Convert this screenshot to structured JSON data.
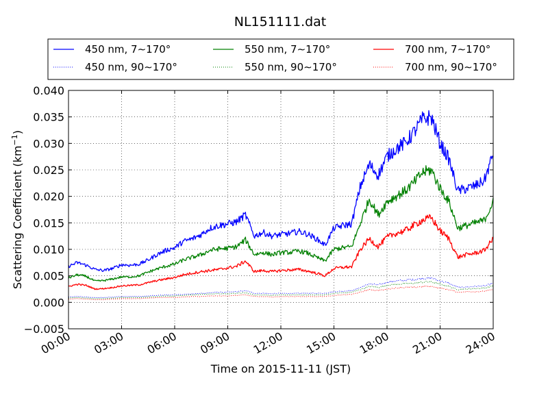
{
  "chart_data": {
    "type": "line",
    "title": "NL151111.dat",
    "xlabel": "Time on 2015-11-11 (JST)",
    "ylabel": "Scattering Coefficient (km",
    "ylabel_sup": "−1",
    "ylabel_close": ")",
    "xlim": [
      "00:00",
      "24:00"
    ],
    "ylim": [
      -0.005,
      0.04
    ],
    "grid": true,
    "legend_position": "top",
    "xticks": [
      "00:00",
      "03:00",
      "06:00",
      "09:00",
      "12:00",
      "15:00",
      "18:00",
      "21:00",
      "24:00"
    ],
    "xtick_hours": [
      0,
      3,
      6,
      9,
      12,
      15,
      18,
      21,
      24
    ],
    "yticks": [
      "−0.005",
      "0.000",
      "0.005",
      "0.010",
      "0.015",
      "0.020",
      "0.025",
      "0.030",
      "0.035",
      "0.040"
    ],
    "ytick_values": [
      -0.005,
      0.0,
      0.005,
      0.01,
      0.015,
      0.02,
      0.025,
      0.03,
      0.035,
      0.04
    ],
    "x": [
      "00:00",
      "00:30",
      "01:00",
      "01:30",
      "02:00",
      "02:30",
      "03:00",
      "03:30",
      "04:00",
      "04:30",
      "05:00",
      "05:30",
      "06:00",
      "06:30",
      "07:00",
      "07:30",
      "08:00",
      "08:30",
      "09:00",
      "09:30",
      "10:00",
      "10:30",
      "11:00",
      "11:30",
      "12:00",
      "12:30",
      "13:00",
      "13:30",
      "14:00",
      "14:30",
      "15:00",
      "15:30",
      "16:00",
      "16:30",
      "17:00",
      "17:30",
      "18:00",
      "18:30",
      "19:00",
      "19:30",
      "20:00",
      "20:30",
      "21:00",
      "21:30",
      "22:00",
      "22:30",
      "23:00",
      "23:30",
      "24:00"
    ],
    "series": [
      {
        "name": "450 nm, 7∼170°",
        "color": "#0000ff",
        "style": "solid",
        "values": [
          0.0068,
          0.0075,
          0.007,
          0.0062,
          0.006,
          0.0064,
          0.0071,
          0.007,
          0.0072,
          0.008,
          0.009,
          0.0098,
          0.0103,
          0.0115,
          0.012,
          0.0128,
          0.014,
          0.0145,
          0.0148,
          0.0152,
          0.0165,
          0.0125,
          0.0132,
          0.0125,
          0.0128,
          0.013,
          0.0134,
          0.0129,
          0.012,
          0.0108,
          0.014,
          0.0145,
          0.0148,
          0.022,
          0.026,
          0.024,
          0.0275,
          0.029,
          0.03,
          0.032,
          0.0345,
          0.035,
          0.03,
          0.027,
          0.021,
          0.0215,
          0.022,
          0.023,
          0.028
        ]
      },
      {
        "name": "550 nm, 7∼170°",
        "color": "#008000",
        "style": "solid",
        "values": [
          0.0046,
          0.0052,
          0.0049,
          0.004,
          0.0041,
          0.0044,
          0.0048,
          0.0048,
          0.005,
          0.0057,
          0.0063,
          0.0068,
          0.0072,
          0.008,
          0.0085,
          0.009,
          0.0098,
          0.0101,
          0.0102,
          0.0105,
          0.0118,
          0.009,
          0.0094,
          0.009,
          0.0094,
          0.0094,
          0.0097,
          0.0093,
          0.0085,
          0.0078,
          0.01,
          0.0103,
          0.0105,
          0.015,
          0.0195,
          0.0165,
          0.019,
          0.02,
          0.021,
          0.0225,
          0.0245,
          0.025,
          0.0215,
          0.019,
          0.014,
          0.0145,
          0.015,
          0.0155,
          0.019
        ]
      },
      {
        "name": "700 nm, 7∼170°",
        "color": "#ff0000",
        "style": "solid",
        "values": [
          0.003,
          0.0034,
          0.0032,
          0.0025,
          0.0026,
          0.0028,
          0.0031,
          0.0032,
          0.0033,
          0.0037,
          0.0041,
          0.0044,
          0.0047,
          0.0052,
          0.0055,
          0.0058,
          0.006,
          0.0062,
          0.0065,
          0.0068,
          0.0078,
          0.0058,
          0.006,
          0.0058,
          0.006,
          0.0061,
          0.0062,
          0.0059,
          0.0055,
          0.005,
          0.0064,
          0.0066,
          0.0067,
          0.01,
          0.012,
          0.0105,
          0.0123,
          0.013,
          0.0135,
          0.0145,
          0.0155,
          0.016,
          0.0135,
          0.012,
          0.0085,
          0.009,
          0.0093,
          0.0098,
          0.012
        ]
      },
      {
        "name": "450 nm, 90∼170°",
        "color": "#0000ff",
        "style": "dotted",
        "values": [
          0.001,
          0.0011,
          0.001,
          0.0009,
          0.0009,
          0.001,
          0.0011,
          0.0011,
          0.0011,
          0.0012,
          0.0013,
          0.0014,
          0.0014,
          0.0015,
          0.0016,
          0.0017,
          0.0018,
          0.0019,
          0.0019,
          0.002,
          0.0022,
          0.0017,
          0.0017,
          0.0016,
          0.0017,
          0.0017,
          0.0017,
          0.0017,
          0.0017,
          0.0017,
          0.002,
          0.0021,
          0.0022,
          0.0028,
          0.0035,
          0.0033,
          0.0038,
          0.004,
          0.0042,
          0.0043,
          0.0045,
          0.0046,
          0.004,
          0.0036,
          0.0028,
          0.0029,
          0.003,
          0.0031,
          0.0036
        ]
      },
      {
        "name": "550 nm, 90∼170°",
        "color": "#008000",
        "style": "dotted",
        "values": [
          0.0008,
          0.0009,
          0.0008,
          0.0007,
          0.0007,
          0.0008,
          0.0009,
          0.0009,
          0.0009,
          0.001,
          0.0011,
          0.0012,
          0.0012,
          0.0013,
          0.0014,
          0.0015,
          0.0016,
          0.0016,
          0.0016,
          0.0017,
          0.0018,
          0.0014,
          0.0014,
          0.0013,
          0.0014,
          0.0014,
          0.0014,
          0.0014,
          0.0014,
          0.0014,
          0.0017,
          0.0018,
          0.0019,
          0.0024,
          0.003,
          0.0028,
          0.0032,
          0.0034,
          0.0035,
          0.0036,
          0.0038,
          0.0039,
          0.0034,
          0.003,
          0.0024,
          0.0025,
          0.0026,
          0.0027,
          0.0031
        ]
      },
      {
        "name": "700 nm, 90∼170°",
        "color": "#ff0000",
        "style": "dotted",
        "values": [
          0.0006,
          0.0007,
          0.0006,
          0.0005,
          0.0005,
          0.0006,
          0.0007,
          0.0007,
          0.0007,
          0.0008,
          0.0009,
          0.0009,
          0.0009,
          0.001,
          0.0011,
          0.0011,
          0.0012,
          0.0012,
          0.0012,
          0.0013,
          0.0014,
          0.0011,
          0.0011,
          0.001,
          0.0011,
          0.0011,
          0.0011,
          0.0011,
          0.0011,
          0.0011,
          0.0013,
          0.0014,
          0.0015,
          0.0019,
          0.0024,
          0.0022,
          0.0025,
          0.0027,
          0.0028,
          0.0028,
          0.003,
          0.003,
          0.0027,
          0.0024,
          0.0019,
          0.002,
          0.002,
          0.0021,
          0.0024
        ]
      }
    ]
  }
}
